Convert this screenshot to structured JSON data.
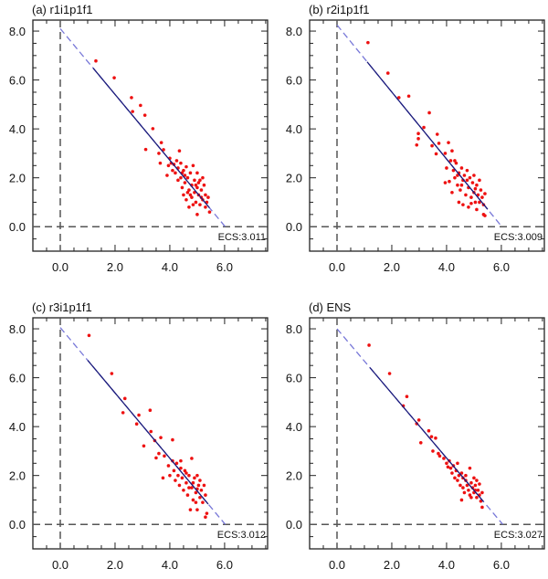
{
  "chart_data": {
    "type": "scatter",
    "layout": "2x2 panels",
    "xlim": [
      -1.0,
      7.57
    ],
    "ylim": [
      -1.0,
      8.45
    ],
    "x_ticks": [
      0,
      2,
      4,
      6
    ],
    "y_ticks": [
      0,
      2,
      4,
      6,
      8
    ],
    "x_tick_labels": [
      "0.0",
      "2.0",
      "4.0",
      "6.0"
    ],
    "y_tick_labels": [
      "0.0",
      "2.0",
      "4.0",
      "6.0",
      "8.0"
    ],
    "reference_lines": {
      "x": 0,
      "y": 0
    },
    "colors": {
      "points": "#ee1111",
      "fit_solid": "#1a1a7a",
      "fit_dashed": "#7878d8",
      "reference": "#555555"
    },
    "panels": [
      {
        "title": "(a) r1i1p1f1",
        "ecs_label": "ECS:3.011",
        "fit": {
          "intercept": 8.1,
          "x_intercept": 6.022,
          "solid_range": [
            1.2,
            5.45
          ]
        },
        "points": [
          [
            1.3,
            6.78
          ],
          [
            1.97,
            6.09
          ],
          [
            2.6,
            5.28
          ],
          [
            2.64,
            4.71
          ],
          [
            2.93,
            4.96
          ],
          [
            3.09,
            4.56
          ],
          [
            3.38,
            4.01
          ],
          [
            3.12,
            3.16
          ],
          [
            3.69,
            3.44
          ],
          [
            3.77,
            3.15
          ],
          [
            3.6,
            3.0
          ],
          [
            3.65,
            2.6
          ],
          [
            3.9,
            2.1
          ],
          [
            3.95,
            2.5
          ],
          [
            4.0,
            2.8
          ],
          [
            4.05,
            2.6
          ],
          [
            4.1,
            2.3
          ],
          [
            4.15,
            2.55
          ],
          [
            4.2,
            2.2
          ],
          [
            4.25,
            2.7
          ],
          [
            4.3,
            2.4
          ],
          [
            4.35,
            3.1
          ],
          [
            4.3,
            1.9
          ],
          [
            4.4,
            2.0
          ],
          [
            4.45,
            1.6
          ],
          [
            4.5,
            2.3
          ],
          [
            4.5,
            1.3
          ],
          [
            4.55,
            1.8
          ],
          [
            4.6,
            2.45
          ],
          [
            4.6,
            1.1
          ],
          [
            4.65,
            2.0
          ],
          [
            4.7,
            1.5
          ],
          [
            4.7,
            0.8
          ],
          [
            4.75,
            2.2
          ],
          [
            4.8,
            1.7
          ],
          [
            4.8,
            1.2
          ],
          [
            4.85,
            2.5
          ],
          [
            4.85,
            0.9
          ],
          [
            4.9,
            1.9
          ],
          [
            4.9,
            1.4
          ],
          [
            4.95,
            1.0
          ],
          [
            5.0,
            2.2
          ],
          [
            5.0,
            1.6
          ],
          [
            5.0,
            0.5
          ],
          [
            5.05,
            1.3
          ],
          [
            5.1,
            1.9
          ],
          [
            5.1,
            0.9
          ],
          [
            5.15,
            1.5
          ],
          [
            5.2,
            2.0
          ],
          [
            5.2,
            1.1
          ],
          [
            5.25,
            1.7
          ],
          [
            5.3,
            1.3
          ],
          [
            5.3,
            0.8
          ],
          [
            5.35,
            1.0
          ],
          [
            5.45,
            0.6
          ],
          [
            5.4,
            1.2
          ],
          [
            4.4,
            2.6
          ],
          [
            4.55,
            2.1
          ],
          [
            4.75,
            1.3
          ],
          [
            5.05,
            1.8
          ],
          [
            4.65,
            1.4
          ],
          [
            4.95,
            1.7
          ],
          [
            5.15,
            1.2
          ],
          [
            4.45,
            2.2
          ]
        ]
      },
      {
        "title": "(b) r2i1p1f1",
        "ecs_label": "ECS:3.009",
        "fit": {
          "intercept": 8.25,
          "x_intercept": 6.018,
          "solid_range": [
            1.1,
            5.5
          ]
        },
        "points": [
          [
            1.13,
            7.53
          ],
          [
            1.86,
            6.28
          ],
          [
            2.26,
            5.28
          ],
          [
            2.62,
            5.34
          ],
          [
            3.37,
            4.66
          ],
          [
            3.17,
            4.06
          ],
          [
            2.97,
            3.81
          ],
          [
            2.97,
            3.6
          ],
          [
            2.91,
            3.34
          ],
          [
            3.66,
            3.78
          ],
          [
            3.72,
            3.41
          ],
          [
            3.47,
            3.31
          ],
          [
            3.62,
            2.98
          ],
          [
            4.07,
            3.44
          ],
          [
            3.95,
            3.0
          ],
          [
            4.0,
            2.4
          ],
          [
            3.95,
            1.8
          ],
          [
            4.1,
            1.85
          ],
          [
            4.15,
            2.7
          ],
          [
            4.2,
            3.1
          ],
          [
            4.2,
            1.4
          ],
          [
            4.25,
            2.3
          ],
          [
            4.3,
            2.0
          ],
          [
            4.35,
            2.6
          ],
          [
            4.4,
            1.7
          ],
          [
            4.45,
            2.2
          ],
          [
            4.45,
            1.0
          ],
          [
            4.5,
            1.5
          ],
          [
            4.55,
            2.4
          ],
          [
            4.6,
            0.9
          ],
          [
            4.6,
            1.9
          ],
          [
            4.65,
            2.1
          ],
          [
            4.7,
            1.3
          ],
          [
            4.75,
            2.3
          ],
          [
            4.8,
            1.6
          ],
          [
            4.8,
            0.8
          ],
          [
            4.85,
            2.0
          ],
          [
            4.9,
            1.2
          ],
          [
            4.95,
            1.8
          ],
          [
            5.0,
            1.4
          ],
          [
            5.0,
            2.1
          ],
          [
            5.05,
            1.0
          ],
          [
            5.1,
            1.7
          ],
          [
            5.1,
            0.7
          ],
          [
            5.15,
            1.3
          ],
          [
            5.2,
            1.9
          ],
          [
            5.2,
            1.0
          ],
          [
            5.25,
            1.5
          ],
          [
            5.3,
            1.2
          ],
          [
            5.35,
            0.5
          ],
          [
            5.4,
            0.45
          ],
          [
            5.35,
            0.9
          ],
          [
            5.4,
            1.35
          ],
          [
            4.3,
            2.7
          ],
          [
            4.55,
            1.7
          ],
          [
            4.75,
            1.9
          ],
          [
            5.05,
            1.55
          ],
          [
            4.4,
            2.1
          ],
          [
            4.9,
            0.95
          ]
        ]
      },
      {
        "title": "(c) r3i1p1f1",
        "ecs_label": "ECS:3.012",
        "fit": {
          "intercept": 8.05,
          "x_intercept": 6.024,
          "solid_range": [
            1.0,
            5.4
          ]
        },
        "points": [
          [
            1.05,
            7.73
          ],
          [
            1.88,
            6.17
          ],
          [
            2.36,
            5.15
          ],
          [
            2.29,
            4.57
          ],
          [
            2.87,
            4.47
          ],
          [
            3.28,
            4.67
          ],
          [
            2.79,
            4.11
          ],
          [
            3.31,
            3.8
          ],
          [
            3.05,
            3.21
          ],
          [
            3.67,
            3.55
          ],
          [
            3.45,
            3.43
          ],
          [
            3.5,
            2.72
          ],
          [
            4.1,
            3.46
          ],
          [
            3.6,
            2.9
          ],
          [
            3.8,
            2.8
          ],
          [
            3.75,
            1.9
          ],
          [
            3.95,
            2.4
          ],
          [
            4.0,
            2.0
          ],
          [
            4.1,
            2.6
          ],
          [
            4.15,
            2.2
          ],
          [
            4.2,
            1.8
          ],
          [
            4.25,
            2.5
          ],
          [
            4.3,
            2.0
          ],
          [
            4.35,
            1.6
          ],
          [
            4.4,
            2.3
          ],
          [
            4.45,
            1.9
          ],
          [
            4.5,
            1.4
          ],
          [
            4.55,
            2.2
          ],
          [
            4.6,
            1.7
          ],
          [
            4.65,
            1.2
          ],
          [
            4.7,
            2.0
          ],
          [
            4.75,
            0.6
          ],
          [
            4.8,
            2.7
          ],
          [
            4.8,
            1.5
          ],
          [
            4.85,
            1.0
          ],
          [
            4.9,
            1.9
          ],
          [
            4.95,
            1.3
          ],
          [
            5.0,
            0.6
          ],
          [
            5.0,
            2.0
          ],
          [
            5.05,
            1.6
          ],
          [
            5.1,
            1.1
          ],
          [
            5.1,
            1.8
          ],
          [
            5.15,
            1.4
          ],
          [
            5.2,
            0.9
          ],
          [
            5.25,
            1.6
          ],
          [
            5.3,
            0.3
          ],
          [
            5.35,
            0.45
          ],
          [
            5.3,
            1.2
          ],
          [
            4.4,
            2.6
          ],
          [
            4.6,
            2.1
          ],
          [
            4.85,
            1.7
          ],
          [
            5.0,
            1.45
          ],
          [
            4.7,
            1.5
          ],
          [
            4.95,
            0.9
          ]
        ]
      },
      {
        "title": "(d) ENS",
        "ecs_label": "ECS:3.027",
        "fit": {
          "intercept": 8.0,
          "x_intercept": 6.054,
          "solid_range": [
            1.2,
            5.35
          ]
        },
        "points": [
          [
            1.17,
            7.33
          ],
          [
            1.92,
            6.17
          ],
          [
            2.55,
            5.23
          ],
          [
            2.42,
            4.85
          ],
          [
            2.99,
            4.27
          ],
          [
            2.91,
            4.12
          ],
          [
            3.35,
            3.83
          ],
          [
            3.06,
            3.34
          ],
          [
            3.45,
            3.59
          ],
          [
            3.6,
            3.53
          ],
          [
            3.5,
            3.0
          ],
          [
            3.7,
            2.9
          ],
          [
            3.75,
            2.8
          ],
          [
            3.9,
            2.7
          ],
          [
            4.0,
            2.5
          ],
          [
            4.05,
            2.35
          ],
          [
            4.1,
            2.6
          ],
          [
            4.15,
            2.3
          ],
          [
            4.2,
            2.1
          ],
          [
            4.25,
            2.4
          ],
          [
            4.3,
            1.9
          ],
          [
            4.35,
            2.2
          ],
          [
            4.4,
            1.8
          ],
          [
            4.45,
            2.0
          ],
          [
            4.5,
            1.6
          ],
          [
            4.55,
            2.1
          ],
          [
            4.6,
            1.5
          ],
          [
            4.6,
            1.9
          ],
          [
            4.65,
            1.3
          ],
          [
            4.7,
            1.8
          ],
          [
            4.75,
            1.6
          ],
          [
            4.8,
            1.4
          ],
          [
            4.85,
            2.3
          ],
          [
            4.85,
            1.2
          ],
          [
            4.9,
            1.7
          ],
          [
            4.95,
            1.5
          ],
          [
            5.0,
            1.3
          ],
          [
            5.0,
            1.9
          ],
          [
            5.05,
            1.6
          ],
          [
            5.1,
            1.1
          ],
          [
            5.1,
            1.8
          ],
          [
            5.15,
            1.4
          ],
          [
            5.2,
            1.2
          ],
          [
            5.2,
            1.65
          ],
          [
            5.25,
            0.95
          ],
          [
            5.3,
            0.7
          ],
          [
            5.3,
            1.3
          ],
          [
            4.55,
            1.0
          ],
          [
            4.4,
            2.5
          ],
          [
            4.7,
            2.0
          ],
          [
            4.9,
            1.1
          ],
          [
            5.05,
            1.4
          ]
        ]
      }
    ]
  }
}
